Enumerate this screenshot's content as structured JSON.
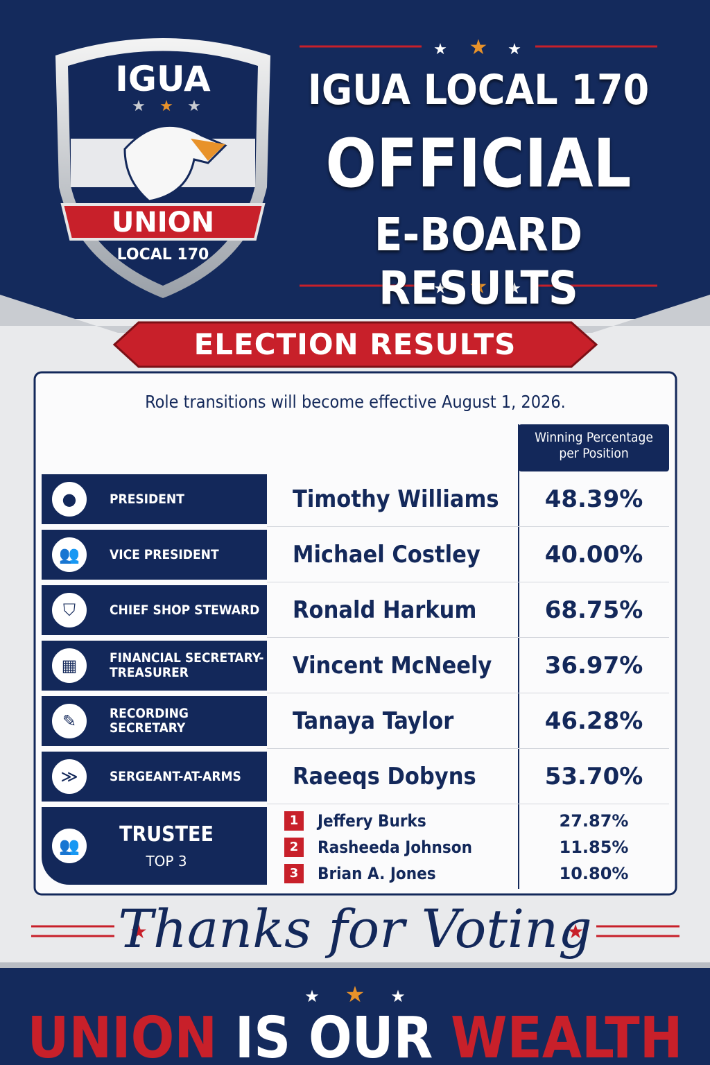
{
  "logo": {
    "top": "IGUA",
    "banner": "UNION",
    "bottom": "LOCAL 170"
  },
  "header": {
    "line1": "IGUA LOCAL 170",
    "line2": "OFFICIAL",
    "line3": "E-BOARD RESULTS"
  },
  "section_title": "ELECTION RESULTS",
  "note": "Role transitions will become effective August 1, 2026.",
  "column_header": "Winning Percentage per Position",
  "results": [
    {
      "role": "PRESIDENT",
      "name": "Timothy Williams",
      "percentage": "48.39%"
    },
    {
      "role": "VICE PRESIDENT",
      "name": "Michael Costley",
      "percentage": "40.00%"
    },
    {
      "role": "CHIEF SHOP STEWARD",
      "name": "Ronald Harkum",
      "percentage": "68.75%"
    },
    {
      "role": "FINANCIAL SECRETARY-TREASURER",
      "name": "Vincent McNeely",
      "percentage": "36.97%"
    },
    {
      "role": "RECORDING SECRETARY",
      "name": "Tanaya Taylor",
      "percentage": "46.28%"
    },
    {
      "role": "SERGEANT-AT-ARMS",
      "name": "Raeeqs Dobyns",
      "percentage": "53.70%"
    }
  ],
  "trustee": {
    "role": "TRUSTEE",
    "subtitle": "TOP 3",
    "candidates": [
      {
        "rank": 1,
        "name": "Jeffery Burks",
        "percentage": "27.87%"
      },
      {
        "rank": 2,
        "name": "Rasheeda Johnson",
        "percentage": "11.85%"
      },
      {
        "rank": 3,
        "name": "Brian A. Jones",
        "percentage": "10.80%"
      }
    ]
  },
  "footer": {
    "thanks": "Thanks for Voting",
    "slogan": [
      "UNION",
      "IS OUR",
      "WEALTH"
    ]
  }
}
